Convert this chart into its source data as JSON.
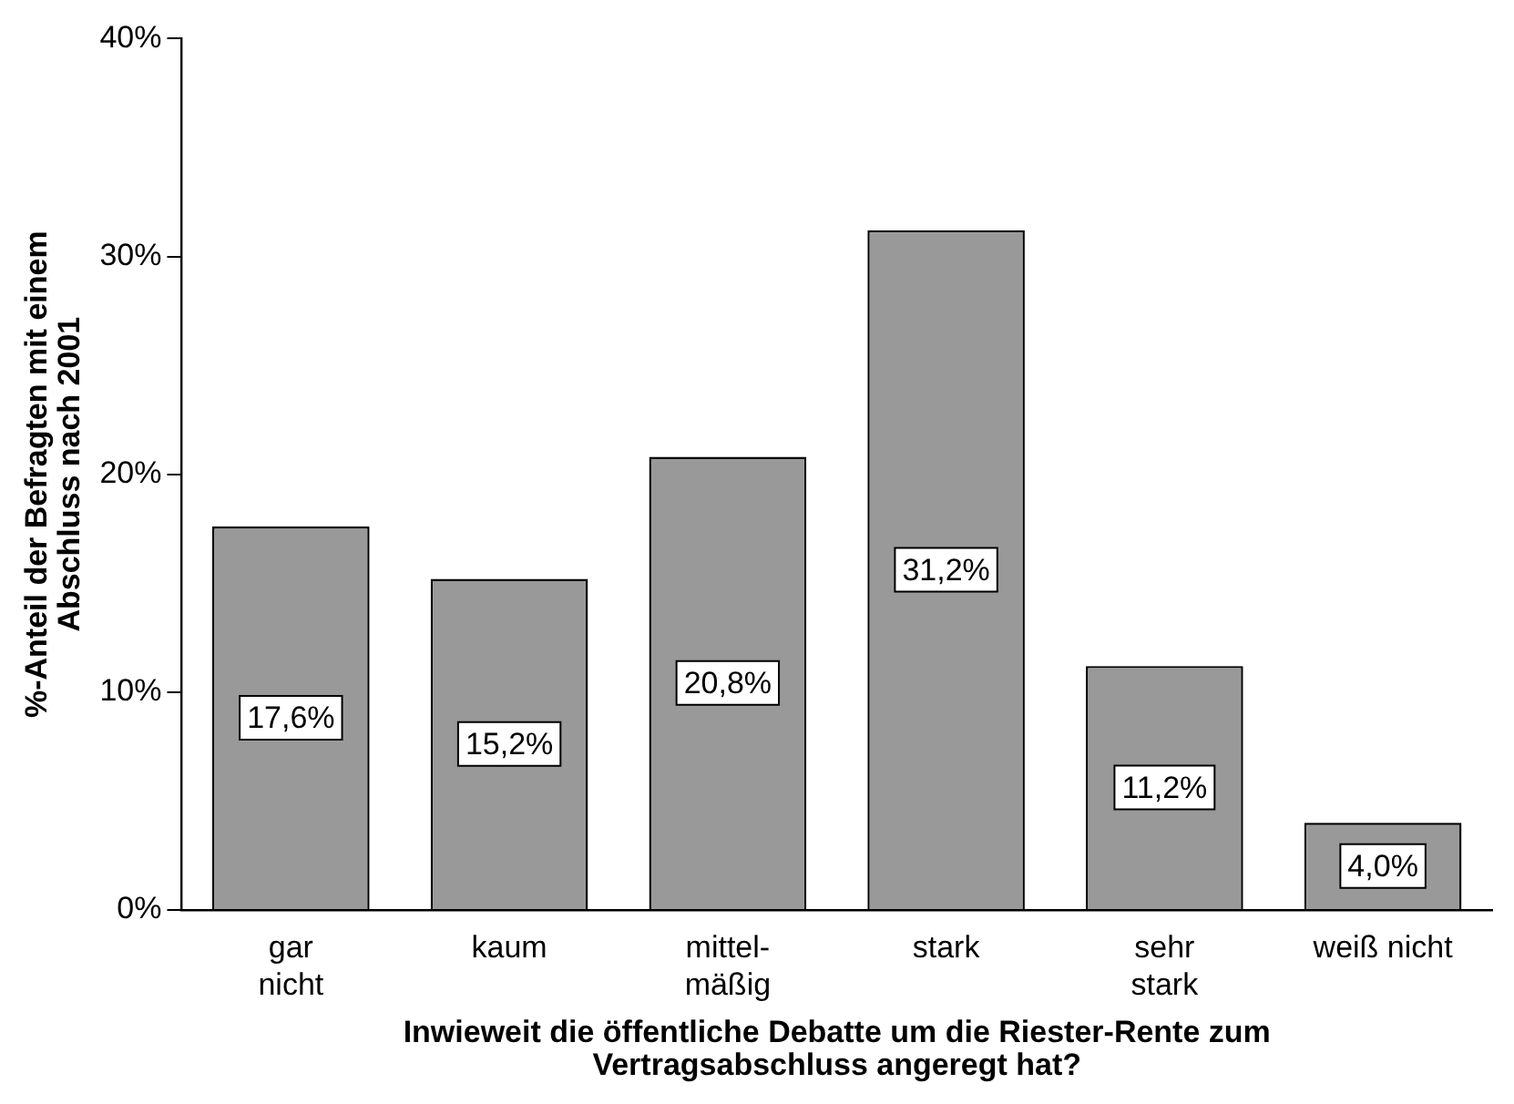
{
  "chart_data": {
    "type": "bar",
    "xlabel": "Inwieweit die öffentliche Debatte um die Riester-Rente zum\nVertragsabschluss angeregt hat?",
    "ylabel": "%-Anteil der Befragten mit einem\nAbschluss nach 2001",
    "categories": [
      "gar\nnicht",
      "kaum",
      "mittel-\nmäßig",
      "stark",
      "sehr\nstark",
      "weiß nicht"
    ],
    "values": [
      17.6,
      15.2,
      20.8,
      31.2,
      11.2,
      4.0
    ],
    "value_labels": [
      "17,6%",
      "15,2%",
      "20,8%",
      "31,2%",
      "11,2%",
      "4,0%"
    ],
    "color": "#999999",
    "ylim": [
      0,
      40
    ],
    "yticks": [
      {
        "value": 0,
        "label": "0%"
      },
      {
        "value": 10,
        "label": "10%"
      },
      {
        "value": 20,
        "label": "20%"
      },
      {
        "value": 30,
        "label": "30%"
      },
      {
        "value": 40,
        "label": "40%"
      }
    ],
    "grid": false,
    "legend": false
  }
}
